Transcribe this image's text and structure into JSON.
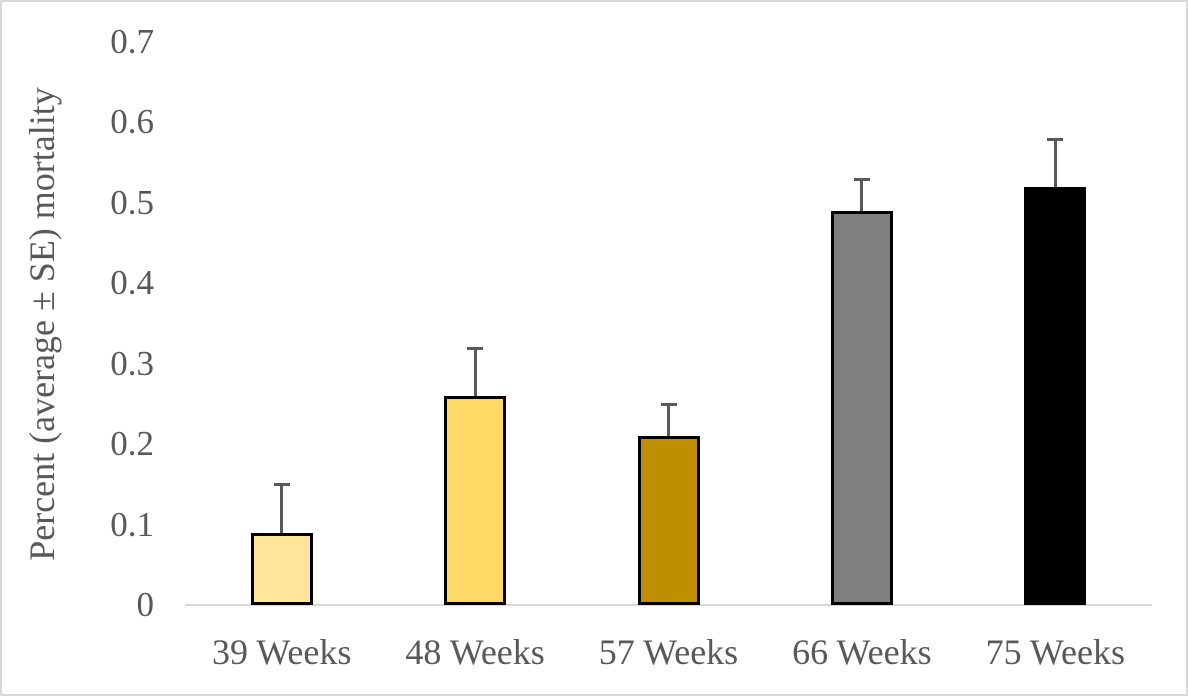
{
  "figure": {
    "background_color": "#ffffff",
    "border_color": "#d9d9d9",
    "text_color": "#595959"
  },
  "chart_data": {
    "type": "bar",
    "title": "",
    "xlabel": "",
    "ylabel": "Percent (average ± SE) mortality",
    "categories": [
      "39 Weeks",
      "48 Weeks",
      "57 Weeks",
      "66 Weeks",
      "75 Weeks"
    ],
    "series": [
      {
        "name": "Percent mortality",
        "values": [
          0.09,
          0.26,
          0.21,
          0.49,
          0.52
        ],
        "errors_plus_se": [
          0.06,
          0.06,
          0.04,
          0.04,
          0.06
        ]
      }
    ],
    "bar_colors": [
      "#FFE699",
      "#FFD966",
      "#BF8F00",
      "#7F7F7F",
      "#000000"
    ],
    "bar_border_color": "#000000",
    "error_bar_color": "#595959",
    "axis_line_color": "#d9d9d9",
    "ylim": [
      0,
      0.7
    ],
    "ytick_interval": 0.1,
    "ytick_labels": [
      "0",
      "0.1",
      "0.2",
      "0.3",
      "0.4",
      "0.5",
      "0.6",
      "0.7"
    ],
    "grid": false,
    "legend_position": "none"
  }
}
